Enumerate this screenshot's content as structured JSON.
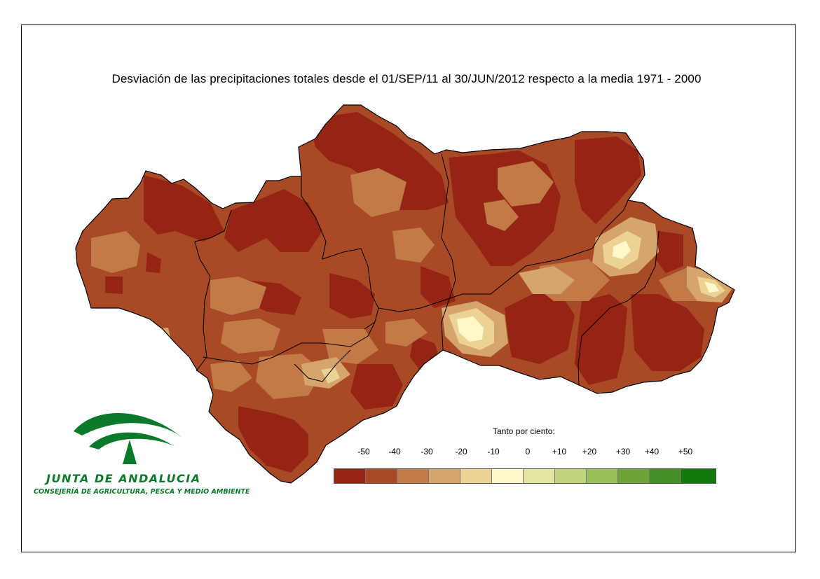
{
  "title": "Desviación de las precipitaciones totales desde el 01/SEP/11 al 30/JUN/2012 respecto a la media 1971 - 2000",
  "legend": {
    "title": "Tanto por ciento:",
    "ticks": [
      "-50",
      "-40",
      "-30",
      "-20",
      "-10",
      "0",
      "+10",
      "+20",
      "+30",
      "+40",
      "+50"
    ],
    "colors": [
      "#952415",
      "#a84a26",
      "#c27a47",
      "#d6a46d",
      "#ecd395",
      "#fcf8c9",
      "#e3e6a0",
      "#c0d57b",
      "#98bf5a",
      "#6ea33a",
      "#448f23",
      "#137a0a"
    ]
  },
  "map": {
    "colors": {
      "deep": "#952415",
      "mid": "#a84a26",
      "light": "#c27a47",
      "tan": "#d6a46d",
      "pale": "#ecd395",
      "cream": "#fcf8c9",
      "boundary": "#000000"
    }
  },
  "logo": {
    "org_name": "JUNTA DE ANDALUCIA",
    "department": "CONSEJERÍA DE AGRICULTURA, PESCA Y MEDIO AMBIENTE",
    "color": "#0a7a2a",
    "icon": "junta-de-andalucia-emblem"
  }
}
